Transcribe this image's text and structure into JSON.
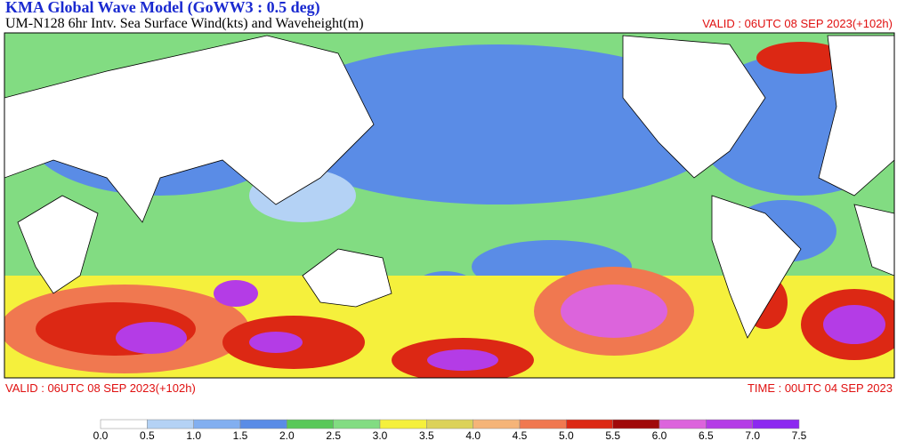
{
  "header": {
    "title": "KMA  Global Wave Model (GoWW3 : 0.5 deg)",
    "subtitle": "UM-N128  6hr Intv. Sea Surface Wind(kts) and Waveheight(m)",
    "valid_top": "VALID : 06UTC 08 SEP 2023(+102h)"
  },
  "footer": {
    "valid": "VALID : 06UTC 08 SEP 2023(+102h)",
    "time": "TIME : 00UTC 04 SEP 2023"
  },
  "legend": {
    "labels": [
      "0.0",
      "0.5",
      "1.0",
      "1.5",
      "2.0",
      "2.5",
      "3.0",
      "3.5",
      "4.0",
      "4.5",
      "5.0",
      "5.5",
      "6.0",
      "6.5",
      "7.0",
      "7.5"
    ],
    "colors": [
      "#ffffff",
      "#b4d2f5",
      "#82aff0",
      "#5a8ce6",
      "#5ac85a",
      "#82dc82",
      "#f5f03c",
      "#dcd25a",
      "#f5b478",
      "#f07850",
      "#dc2814",
      "#a00a0a",
      "#dc64dc",
      "#b43ce6",
      "#8c28f0"
    ]
  }
}
